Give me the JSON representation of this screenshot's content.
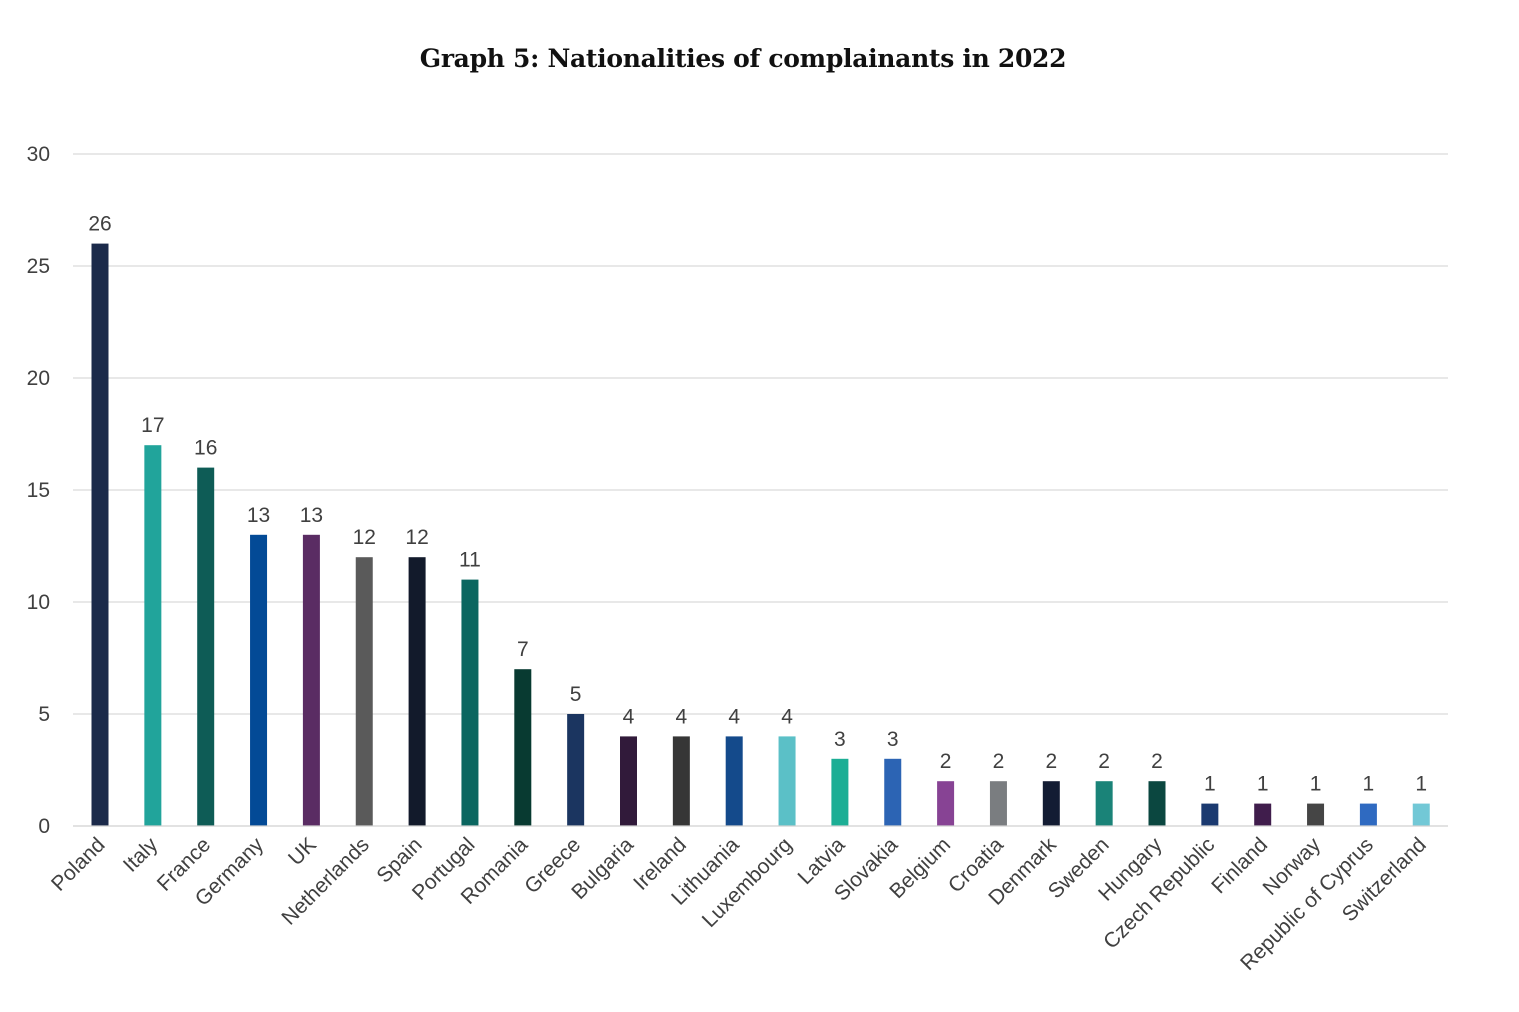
{
  "chart_data": {
    "type": "bar",
    "title": "Graph 5: Nationalities of complainants in 2022",
    "xlabel": "",
    "ylabel": "",
    "ylim": [
      0,
      30
    ],
    "yticks": [
      0,
      5,
      10,
      15,
      20,
      25,
      30
    ],
    "grid": true,
    "legend": "none",
    "categories": [
      "Poland",
      "Italy",
      "France",
      "Germany",
      "UK",
      "Netherlands",
      "Spain",
      "Portugal",
      "Romania",
      "Greece",
      "Bulgaria",
      "Ireland",
      "Lithuania",
      "Luxembourg",
      "Latvia",
      "Slovakia",
      "Belgium",
      "Croatia",
      "Denmark",
      "Sweden",
      "Hungary",
      "Czech Republic",
      "Finland",
      "Norway",
      "Republic of Cyprus",
      "Switzerland"
    ],
    "values": [
      26,
      17,
      16,
      13,
      13,
      12,
      12,
      11,
      7,
      5,
      4,
      4,
      4,
      4,
      3,
      3,
      2,
      2,
      2,
      2,
      2,
      1,
      1,
      1,
      1,
      1
    ],
    "colors": [
      "#1b2a4a",
      "#21a49b",
      "#0e5c56",
      "#034a96",
      "#5a2c63",
      "#5a5a5a",
      "#121a2b",
      "#0b6660",
      "#083a31",
      "#1b3560",
      "#311a3a",
      "#363636",
      "#144a8b",
      "#5bc0c7",
      "#1cae95",
      "#2c64b4",
      "#874394",
      "#7a7d80",
      "#131c33",
      "#1a8378",
      "#0b4740",
      "#1b3a70",
      "#401d4c",
      "#454545",
      "#2f6ac1",
      "#72c8d6"
    ]
  }
}
